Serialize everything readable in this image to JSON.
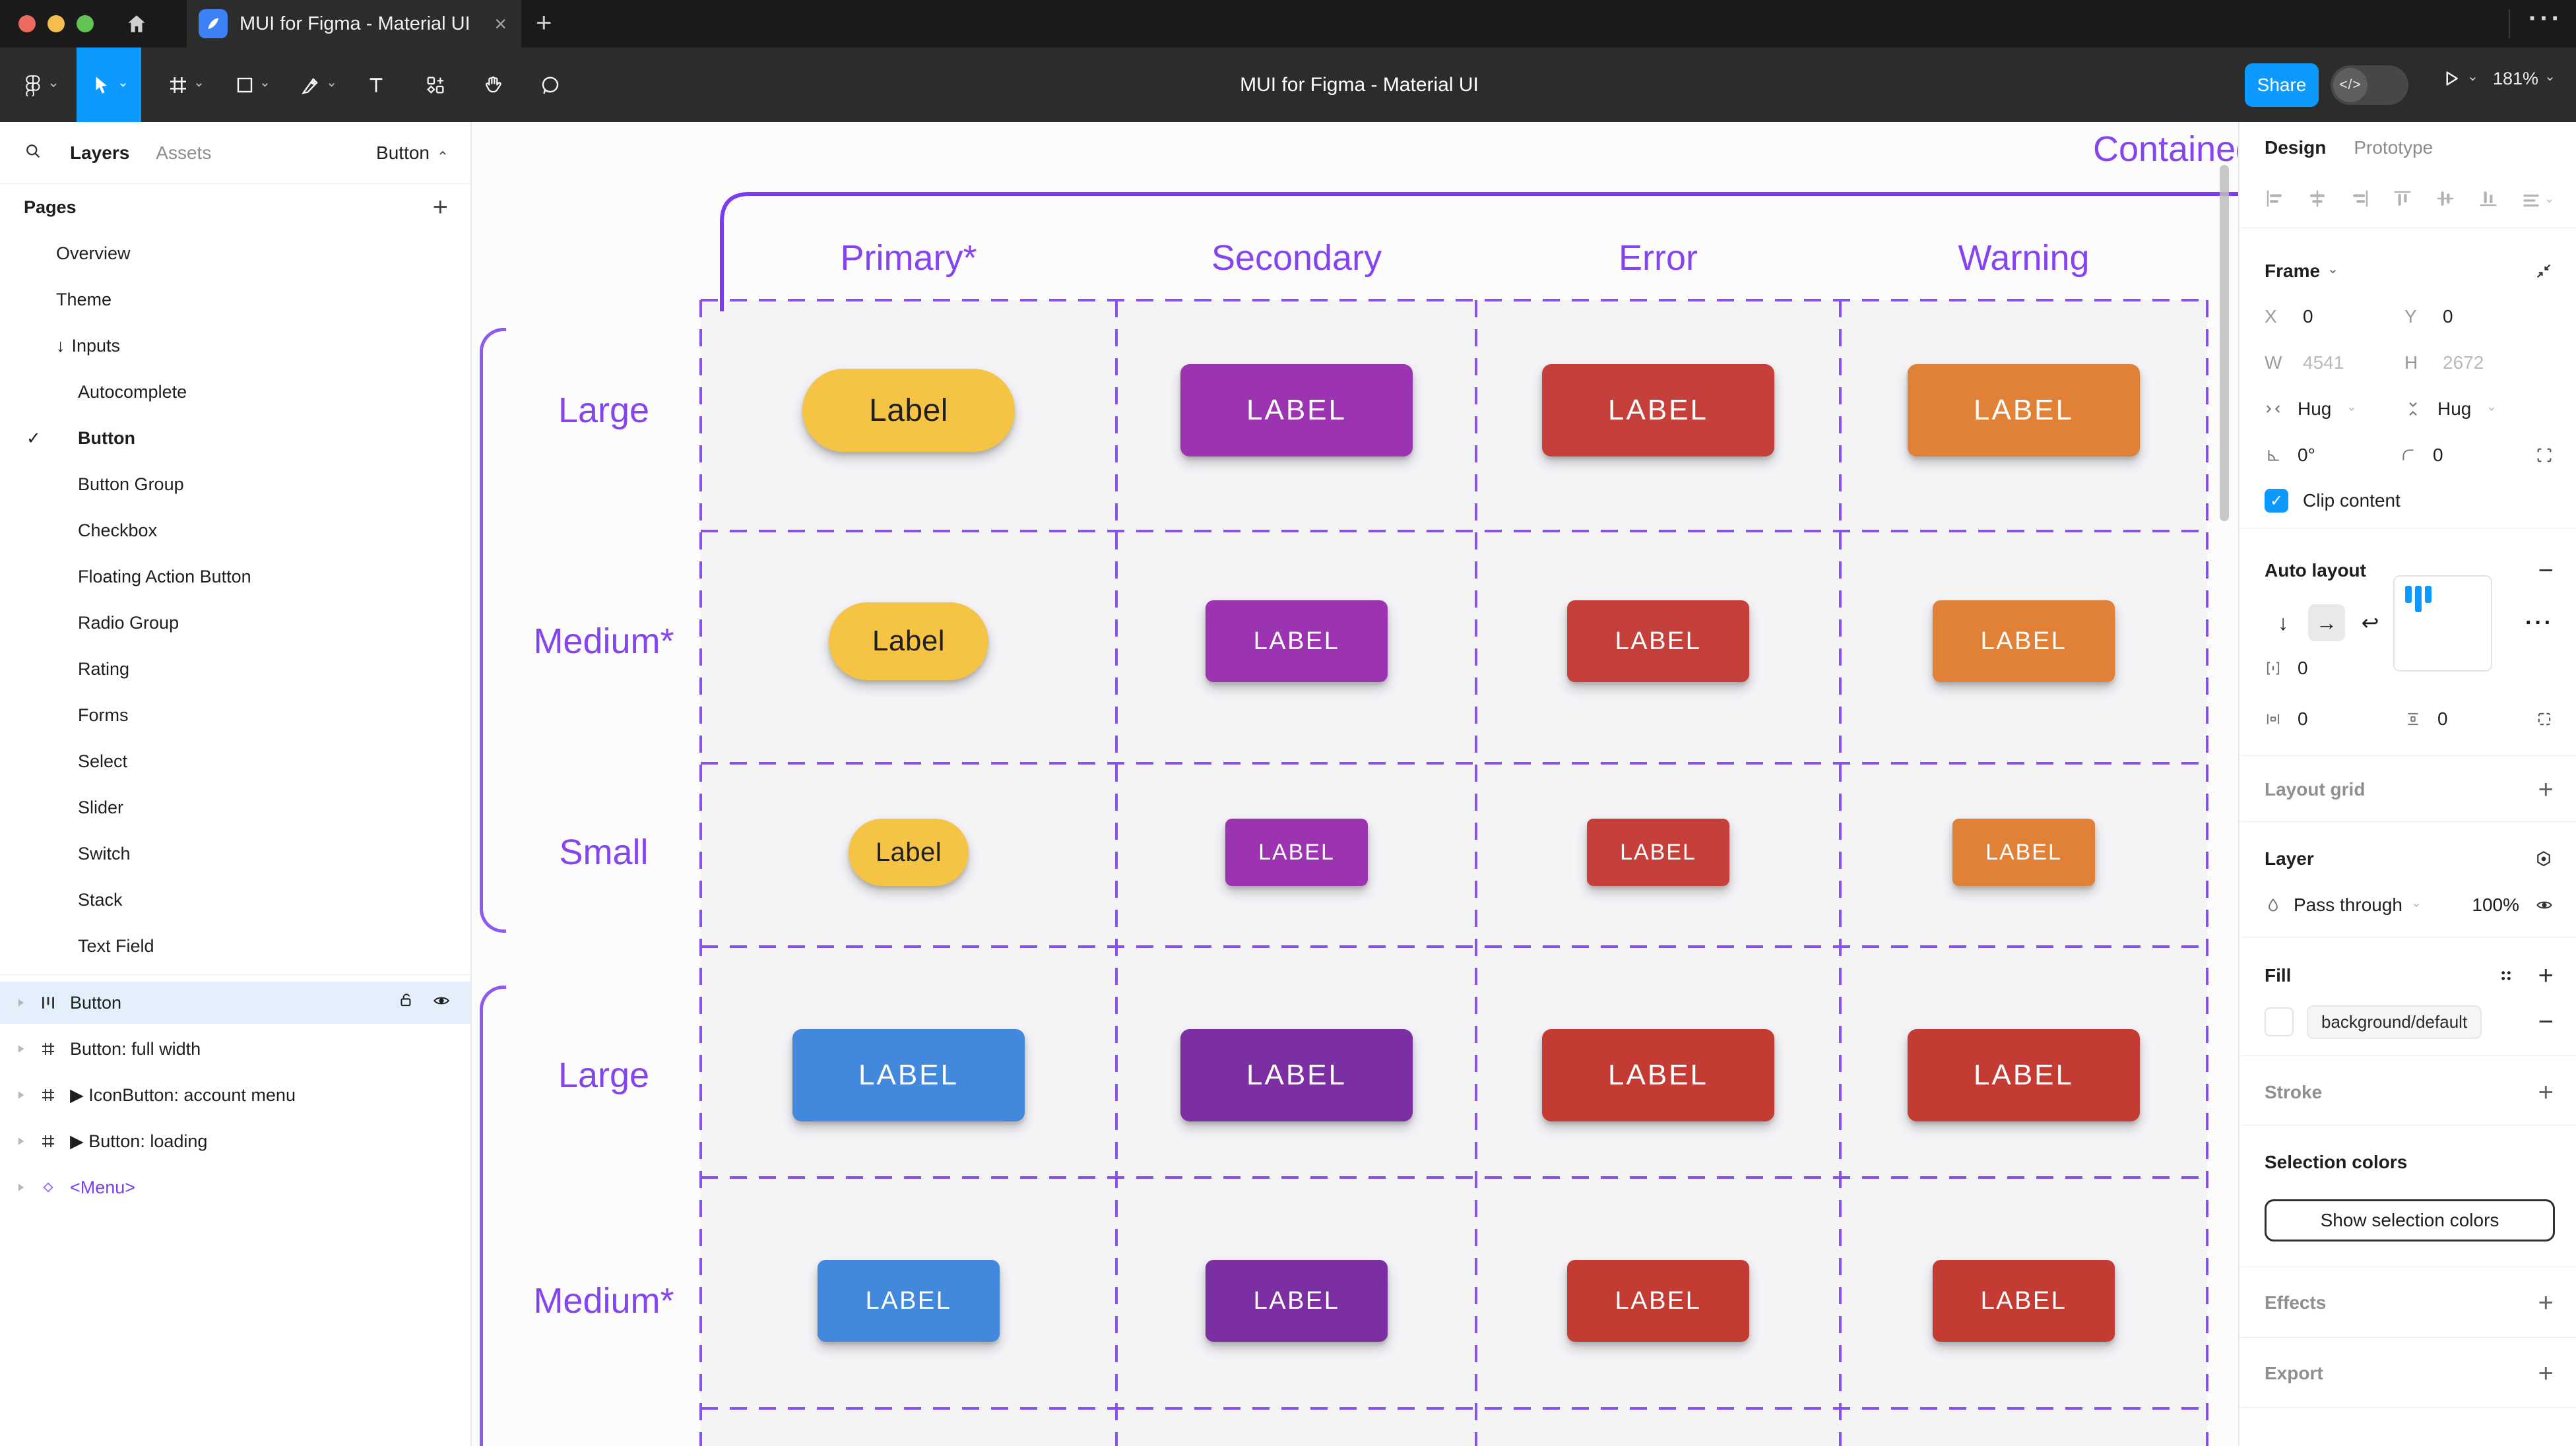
{
  "colors": {
    "accent": "#0D99FF",
    "figma_purple": "#8444F0",
    "dash_purple": "#8552EE",
    "titlebar_bg": "#1A1A1A",
    "toolbar_bg": "#2C2C2C",
    "selected_layer_bg": "#E3F0FC",
    "button_yellow": "#F6C445",
    "button_secondary_purple": "#9C34B2",
    "button_error_red": "#C5403B",
    "button_warning_orange": "#E08137",
    "button_blue": "#4289DE",
    "button_deep_purple": "#7B2FA2",
    "button_red2": "#C33B33"
  },
  "icons": {
    "close": "×",
    "new_tab": "+",
    "overflow": "···",
    "plus": "+",
    "minus": "−",
    "check": "✓",
    "caret_up": "^",
    "arrow_down": "↓",
    "arrow_right": "→",
    "wrap": "↩",
    "more": "···",
    "degree_zero": "0°"
  },
  "window": {
    "tab_title": "MUI for Figma - Material UI"
  },
  "toolbar": {
    "doc_title": "MUI for Figma - Material UI",
    "share_label": "Share",
    "dev_toggle_label": "</>",
    "zoom_label": "181%"
  },
  "sidebar": {
    "tab_layers": "Layers",
    "tab_assets": "Assets",
    "page_selector": "Button",
    "pages_header": "Pages",
    "pages": [
      {
        "label": "Overview",
        "indent": 0
      },
      {
        "label": "Theme",
        "indent": 0
      },
      {
        "label": "Inputs",
        "indent": 0,
        "prefix": "↓"
      },
      {
        "label": "Autocomplete",
        "indent": 1
      },
      {
        "label": "Button",
        "indent": 1,
        "checked": true,
        "current": true
      },
      {
        "label": "Button Group",
        "indent": 1
      },
      {
        "label": "Checkbox",
        "indent": 1
      },
      {
        "label": "Floating Action Button",
        "indent": 1
      },
      {
        "label": "Radio Group",
        "indent": 1
      },
      {
        "label": "Rating",
        "indent": 1
      },
      {
        "label": "Forms",
        "indent": 1
      },
      {
        "label": "Select",
        "indent": 1
      },
      {
        "label": "Slider",
        "indent": 1
      },
      {
        "label": "Switch",
        "indent": 1
      },
      {
        "label": "Stack",
        "indent": 1
      },
      {
        "label": "Text Field",
        "indent": 1
      }
    ],
    "layers": [
      {
        "name": "Button",
        "icon": "autolayout",
        "selected": true
      },
      {
        "name": "Button: full width",
        "icon": "frame"
      },
      {
        "name": "▶ IconButton: account menu",
        "icon": "frame"
      },
      {
        "name": "▶ Button: loading",
        "icon": "frame"
      },
      {
        "name": "<Menu>",
        "icon": "instance",
        "purple": true
      }
    ]
  },
  "canvas": {
    "section_title": "Contained",
    "columns": [
      "Primary*",
      "Secondary",
      "Error",
      "Warning"
    ],
    "groups": [
      {
        "rows": [
          {
            "label": "Large",
            "size": "large",
            "buttons": [
              {
                "label": "Label",
                "bg": "#F6C445",
                "fg": "#1F1F1F",
                "pill": true
              },
              {
                "label": "LABEL",
                "bg": "#9C34B2",
                "fg": "#FFFFFF"
              },
              {
                "label": "LABEL",
                "bg": "#C5403B",
                "fg": "#FFFFFF"
              },
              {
                "label": "LABEL",
                "bg": "#E08137",
                "fg": "#FFFFFF"
              }
            ]
          },
          {
            "label": "Medium*",
            "size": "medium",
            "buttons": [
              {
                "label": "Label",
                "bg": "#F6C445",
                "fg": "#1F1F1F",
                "pill": true
              },
              {
                "label": "LABEL",
                "bg": "#9C34B2",
                "fg": "#FFFFFF"
              },
              {
                "label": "LABEL",
                "bg": "#C5403B",
                "fg": "#FFFFFF"
              },
              {
                "label": "LABEL",
                "bg": "#E08137",
                "fg": "#FFFFFF"
              }
            ]
          },
          {
            "label": "Small",
            "size": "small",
            "buttons": [
              {
                "label": "Label",
                "bg": "#F6C445",
                "fg": "#1F1F1F",
                "pill": true
              },
              {
                "label": "LABEL",
                "bg": "#9C34B2",
                "fg": "#FFFFFF"
              },
              {
                "label": "LABEL",
                "bg": "#C5403B",
                "fg": "#FFFFFF"
              },
              {
                "label": "LABEL",
                "bg": "#E08137",
                "fg": "#FFFFFF"
              }
            ]
          }
        ]
      },
      {
        "rows": [
          {
            "label": "Large",
            "size": "large",
            "buttons": [
              {
                "label": "LABEL",
                "bg": "#4289DE",
                "fg": "#FFFFFF"
              },
              {
                "label": "LABEL",
                "bg": "#7B2FA2",
                "fg": "#FFFFFF"
              },
              {
                "label": "LABEL",
                "bg": "#C33B33",
                "fg": "#FFFFFF"
              },
              {
                "label": "LABEL",
                "bg": "#C33B33",
                "fg": "#FFFFFF"
              }
            ]
          },
          {
            "label": "Medium*",
            "size": "medium",
            "buttons": [
              {
                "label": "LABEL",
                "bg": "#4289DE",
                "fg": "#FFFFFF"
              },
              {
                "label": "LABEL",
                "bg": "#7B2FA2",
                "fg": "#FFFFFF"
              },
              {
                "label": "LABEL",
                "bg": "#C33B33",
                "fg": "#FFFFFF"
              },
              {
                "label": "LABEL",
                "bg": "#C33B33",
                "fg": "#FFFFFF"
              }
            ]
          }
        ]
      }
    ]
  },
  "inspector": {
    "tab_design": "Design",
    "tab_prototype": "Prototype",
    "frame": {
      "title": "Frame",
      "x_label": "X",
      "x_value": "0",
      "y_label": "Y",
      "y_value": "0",
      "w_label": "W",
      "w_value": "4541",
      "h_label": "H",
      "h_value": "2672",
      "hug_h": "Hug",
      "hug_v": "Hug",
      "rotation_value": "0°",
      "radius_value": "0",
      "clip_label": "Clip content"
    },
    "auto_layout": {
      "title": "Auto layout",
      "gap_value": "0",
      "pad_h_value": "0",
      "pad_v_value": "0"
    },
    "layout_grid": {
      "title": "Layout grid"
    },
    "layer": {
      "title": "Layer",
      "blend_mode": "Pass through",
      "opacity": "100%"
    },
    "fill": {
      "title": "Fill",
      "token": "background/default"
    },
    "stroke": {
      "title": "Stroke"
    },
    "selection_colors": {
      "title": "Selection colors",
      "button_label": "Show selection colors"
    },
    "effects": {
      "title": "Effects"
    },
    "export": {
      "title": "Export"
    }
  }
}
